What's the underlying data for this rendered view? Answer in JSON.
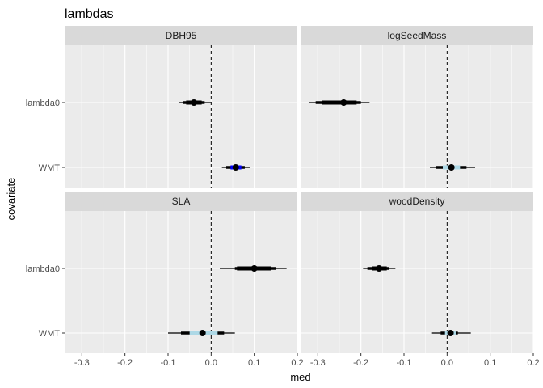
{
  "chart_data": {
    "type": "interval-dot",
    "title": "lambdas",
    "xlabel": "med",
    "ylabel": "covariate",
    "xlim": [
      -0.34,
      0.2
    ],
    "x_ticks": [
      -0.3,
      -0.2,
      -0.1,
      0.0,
      0.1,
      0.2
    ],
    "x_tick_labels": [
      "-0.3",
      "-0.2",
      "-0.1",
      "0.0",
      "0.1",
      "0.2"
    ],
    "categories": [
      "lambda0",
      "WMT"
    ],
    "reference_line": 0,
    "grid": true,
    "facets": [
      {
        "label": "DBH95",
        "rows": [
          {
            "covariate": "lambda0",
            "med": -0.04,
            "outer": [
              -0.075,
              0.0
            ],
            "mid": [
              -0.065,
              -0.015
            ],
            "inner": [
              -0.058,
              -0.022
            ],
            "inner_color": "#000000"
          },
          {
            "covariate": "WMT",
            "med": 0.057,
            "outer": [
              0.025,
              0.09
            ],
            "mid": [
              0.035,
              0.078
            ],
            "inner": [
              0.045,
              0.07
            ],
            "inner_color": "#0000ff"
          }
        ]
      },
      {
        "label": "logSeedMass",
        "rows": [
          {
            "covariate": "lambda0",
            "med": -0.24,
            "outer": [
              -0.32,
              -0.18
            ],
            "mid": [
              -0.305,
              -0.2
            ],
            "inner": [
              -0.29,
              -0.21
            ],
            "inner_color": "#000000"
          },
          {
            "covariate": "WMT",
            "med": 0.01,
            "outer": [
              -0.04,
              0.065
            ],
            "mid": [
              -0.025,
              0.045
            ],
            "inner": [
              -0.01,
              0.03
            ],
            "inner_color": "#add8e6"
          }
        ]
      },
      {
        "label": "SLA",
        "rows": [
          {
            "covariate": "lambda0",
            "med": 0.1,
            "outer": [
              0.02,
              0.175
            ],
            "mid": [
              0.055,
              0.15
            ],
            "inner": [
              0.06,
              0.14
            ],
            "inner_color": "#000000"
          },
          {
            "covariate": "WMT",
            "med": -0.02,
            "outer": [
              -0.1,
              0.055
            ],
            "mid": [
              -0.07,
              0.03
            ],
            "inner": [
              -0.05,
              0.015
            ],
            "inner_color": "#add8e6"
          }
        ]
      },
      {
        "label": "woodDensity",
        "rows": [
          {
            "covariate": "lambda0",
            "med": -0.158,
            "outer": [
              -0.195,
              -0.12
            ],
            "mid": [
              -0.185,
              -0.135
            ],
            "inner": [
              -0.175,
              -0.14
            ],
            "inner_color": "#000000"
          },
          {
            "covariate": "WMT",
            "med": 0.008,
            "outer": [
              -0.035,
              0.055
            ],
            "mid": [
              -0.015,
              0.025
            ],
            "inner": [
              -0.005,
              0.02
            ],
            "inner_color": "#add8e6"
          }
        ]
      }
    ]
  }
}
